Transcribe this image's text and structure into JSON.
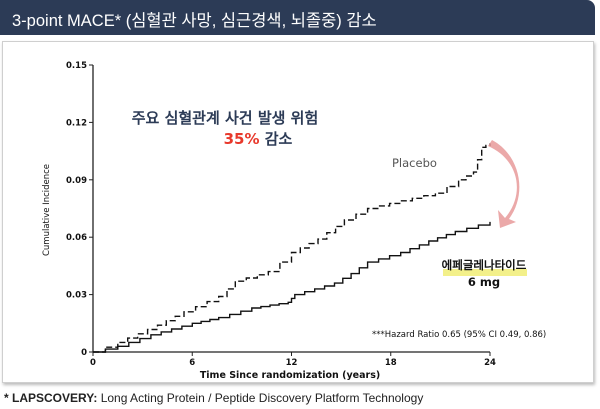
{
  "header": {
    "title": "3-point MACE* (심혈관 사망, 심근경색, 뇌졸중) 감소"
  },
  "footer": {
    "label": "* LAPSCOVERY:",
    "text": " Long Acting Protein / Peptide Discovery Platform Technology"
  },
  "chart_data": {
    "type": "line",
    "headline": "주요 심혈관계 사건 발생 위험",
    "headline_highlight": "35%",
    "headline_suffix": " 감소",
    "xlabel": "Time Since randomization (years)",
    "ylabel": "Cumulative Incidence",
    "xlim": [
      0,
      24
    ],
    "ylim": [
      0,
      0.15
    ],
    "xticks": [
      "0",
      "6",
      "12",
      "18",
      "24"
    ],
    "yticks": [
      "0",
      "0.03",
      "0.06",
      "0.09",
      "0.12",
      "0.15"
    ],
    "annotation": "***Hazard Ratio 0.65 (95% CI 0.49, 0.86)",
    "colors": {
      "header": "#2c3b56",
      "highlight": "#e8392c",
      "headline": "#2c3b56",
      "arrow": "#e89a9a",
      "label_highlight": "#f3f08a"
    },
    "series": [
      {
        "name": "Placebo",
        "style": "dashed",
        "x": [
          0,
          1.5,
          3.9,
          5.5,
          7.6,
          8.6,
          10.6,
          12,
          13.6,
          15.2,
          16.6,
          18.6,
          20.7,
          22.1,
          23,
          23.5,
          24
        ],
        "y": [
          0,
          0.005,
          0.014,
          0.021,
          0.029,
          0.037,
          0.042,
          0.052,
          0.059,
          0.069,
          0.075,
          0.079,
          0.083,
          0.09,
          0.094,
          0.107,
          0.109
        ]
      },
      {
        "name": "에페글레나타이드",
        "name_sub": "6 mg",
        "style": "solid",
        "x": [
          0,
          1.5,
          3.5,
          6,
          7.6,
          9.6,
          11.8,
          12.2,
          14.6,
          15.6,
          16.6,
          18.6,
          20.3,
          21.9,
          24
        ],
        "y": [
          0,
          0.003,
          0.009,
          0.015,
          0.018,
          0.023,
          0.026,
          0.03,
          0.036,
          0.041,
          0.047,
          0.052,
          0.058,
          0.063,
          0.068
        ]
      }
    ]
  }
}
